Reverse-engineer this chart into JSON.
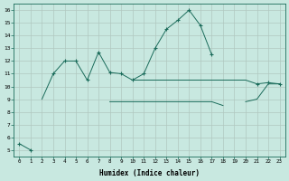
{
  "xlabel": "Humidex (Indice chaleur)",
  "x": [
    0,
    1,
    2,
    3,
    4,
    5,
    6,
    7,
    8,
    9,
    10,
    11,
    12,
    13,
    14,
    15,
    16,
    17,
    18,
    19,
    20,
    21,
    22,
    23
  ],
  "line1": [
    5.5,
    5.0,
    null,
    11.0,
    12.0,
    12.0,
    10.5,
    12.7,
    11.1,
    11.0,
    10.5,
    11.0,
    13.0,
    14.5,
    15.2,
    16.0,
    14.8,
    12.5,
    null,
    null,
    null,
    10.2,
    10.3,
    10.2
  ],
  "line2_a": [
    null,
    null,
    9.0,
    11.0,
    null,
    null,
    null,
    null,
    null,
    null,
    null,
    null,
    null,
    null,
    null,
    null,
    null,
    null,
    null,
    null,
    null,
    null,
    null,
    null
  ],
  "line2_b": [
    null,
    null,
    null,
    null,
    null,
    null,
    null,
    null,
    null,
    null,
    10.5,
    10.5,
    10.5,
    10.5,
    10.5,
    10.5,
    10.5,
    10.5,
    10.5,
    10.5,
    10.5,
    10.2,
    null,
    null
  ],
  "line3_a": [
    null,
    null,
    9.0,
    null,
    null,
    null,
    null,
    null,
    null,
    null,
    null,
    null,
    null,
    null,
    null,
    null,
    null,
    null,
    null,
    null,
    null,
    null,
    null,
    null
  ],
  "line3_b": [
    null,
    null,
    null,
    null,
    null,
    null,
    null,
    null,
    8.8,
    8.8,
    8.8,
    8.8,
    8.8,
    8.8,
    8.8,
    8.8,
    8.8,
    8.8,
    8.5,
    null,
    null,
    null,
    null,
    null
  ],
  "line3_c": [
    null,
    null,
    null,
    null,
    null,
    null,
    null,
    null,
    null,
    null,
    null,
    null,
    null,
    null,
    null,
    null,
    null,
    null,
    null,
    null,
    8.8,
    9.0,
    10.2,
    10.2
  ],
  "bg_color": "#c8e8e0",
  "grid_color": "#b0c8c0",
  "line_color": "#1a6b5a",
  "xlim": [
    -0.5,
    23.5
  ],
  "ylim": [
    4.5,
    16.5
  ],
  "yticks": [
    5,
    6,
    7,
    8,
    9,
    10,
    11,
    12,
    13,
    14,
    15,
    16
  ],
  "xticks": [
    0,
    1,
    2,
    3,
    4,
    5,
    6,
    7,
    8,
    9,
    10,
    11,
    12,
    13,
    14,
    15,
    16,
    17,
    18,
    19,
    20,
    21,
    22,
    23
  ]
}
